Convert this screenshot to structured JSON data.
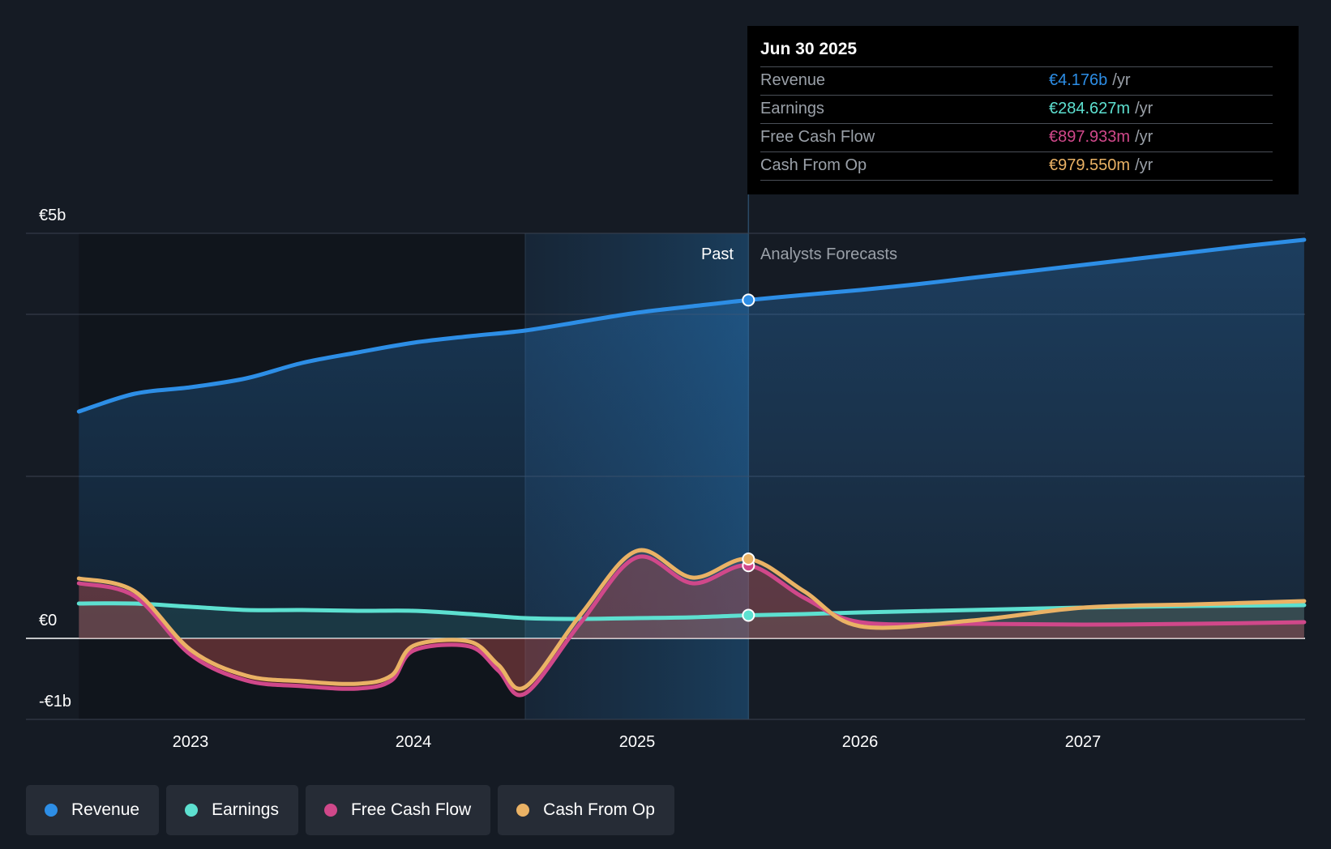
{
  "chart_data": {
    "type": "line",
    "title": "",
    "y_axis": {
      "labels": [
        "€5b",
        "€0",
        "-€1b"
      ],
      "ylim": [
        -1,
        5
      ],
      "gridlines": [
        5,
        4,
        2,
        0,
        -1
      ]
    },
    "x_axis": {
      "ticks": [
        2023,
        2024,
        2025,
        2026,
        2027
      ],
      "tick_labels": [
        "2023",
        "2024",
        "2025",
        "2026",
        "2027"
      ],
      "xlim": [
        2022.5,
        2027.99
      ]
    },
    "regions": {
      "past_label": "Past",
      "forecast_label": "Analysts Forecasts",
      "highlight_start": 2024.5,
      "divider": 2025.5
    },
    "series": [
      {
        "name": "Revenue",
        "color": "#2d8ee6",
        "x": [
          2022.5,
          2022.75,
          2023.0,
          2023.25,
          2023.5,
          2023.75,
          2024.0,
          2024.25,
          2024.5,
          2024.75,
          2025.0,
          2025.25,
          2025.5,
          2025.75,
          2026.0,
          2026.25,
          2026.5,
          2026.75,
          2027.0,
          2027.25,
          2027.5,
          2027.75,
          2027.99
        ],
        "values": [
          2.8,
          3.02,
          3.1,
          3.21,
          3.4,
          3.53,
          3.65,
          3.73,
          3.8,
          3.91,
          4.02,
          4.1,
          4.176,
          4.24,
          4.3,
          4.37,
          4.45,
          4.53,
          4.61,
          4.69,
          4.77,
          4.85,
          4.92
        ]
      },
      {
        "name": "Earnings",
        "color": "#5de0d0",
        "x": [
          2022.5,
          2022.75,
          2023.0,
          2023.25,
          2023.5,
          2023.75,
          2024.0,
          2024.25,
          2024.5,
          2024.75,
          2025.0,
          2025.25,
          2025.5,
          2025.75,
          2026.0,
          2026.5,
          2027.0,
          2027.5,
          2027.99
        ],
        "values": [
          0.43,
          0.43,
          0.39,
          0.35,
          0.35,
          0.34,
          0.34,
          0.3,
          0.25,
          0.24,
          0.25,
          0.26,
          0.285,
          0.3,
          0.32,
          0.35,
          0.38,
          0.4,
          0.41
        ]
      },
      {
        "name": "Free Cash Flow",
        "color": "#d0488a",
        "x": [
          2022.5,
          2022.75,
          2023.0,
          2023.25,
          2023.5,
          2023.75,
          2023.9,
          2024.0,
          2024.25,
          2024.38,
          2024.5,
          2024.75,
          2025.0,
          2025.25,
          2025.5,
          2025.75,
          2026.0,
          2026.5,
          2027.0,
          2027.5,
          2027.99
        ],
        "values": [
          0.68,
          0.52,
          -0.2,
          -0.52,
          -0.59,
          -0.62,
          -0.52,
          -0.15,
          -0.1,
          -0.4,
          -0.68,
          0.2,
          1.0,
          0.68,
          0.9,
          0.5,
          0.2,
          0.18,
          0.17,
          0.18,
          0.2
        ]
      },
      {
        "name": "Cash From Op",
        "color": "#eab265",
        "x": [
          2022.5,
          2022.75,
          2023.0,
          2023.25,
          2023.5,
          2023.75,
          2023.9,
          2024.0,
          2024.25,
          2024.38,
          2024.5,
          2024.75,
          2025.0,
          2025.25,
          2025.5,
          2025.75,
          2026.0,
          2026.5,
          2027.0,
          2027.5,
          2027.99
        ],
        "values": [
          0.74,
          0.58,
          -0.14,
          -0.46,
          -0.53,
          -0.56,
          -0.46,
          -0.09,
          -0.04,
          -0.33,
          -0.6,
          0.3,
          1.08,
          0.75,
          0.98,
          0.58,
          0.15,
          0.22,
          0.38,
          0.42,
          0.46
        ]
      }
    ],
    "markers_at": 2025.5,
    "marker_values": {
      "Revenue": 4.176,
      "Earnings": 0.285,
      "Free Cash Flow": 0.898,
      "Cash From Op": 0.98
    }
  },
  "tooltip": {
    "date": "Jun 30 2025",
    "rows": [
      {
        "name": "Revenue",
        "value": "€4.176b",
        "unit": "/yr",
        "color": "#2d8ee6"
      },
      {
        "name": "Earnings",
        "value": "€284.627m",
        "unit": "/yr",
        "color": "#5de0d0"
      },
      {
        "name": "Free Cash Flow",
        "value": "€897.933m",
        "unit": "/yr",
        "color": "#d0488a"
      },
      {
        "name": "Cash From Op",
        "value": "€979.550m",
        "unit": "/yr",
        "color": "#eab265"
      }
    ]
  },
  "legend": [
    {
      "label": "Revenue",
      "color": "#2d8ee6"
    },
    {
      "label": "Earnings",
      "color": "#5de0d0"
    },
    {
      "label": "Free Cash Flow",
      "color": "#d0488a"
    },
    {
      "label": "Cash From Op",
      "color": "#eab265"
    }
  ]
}
